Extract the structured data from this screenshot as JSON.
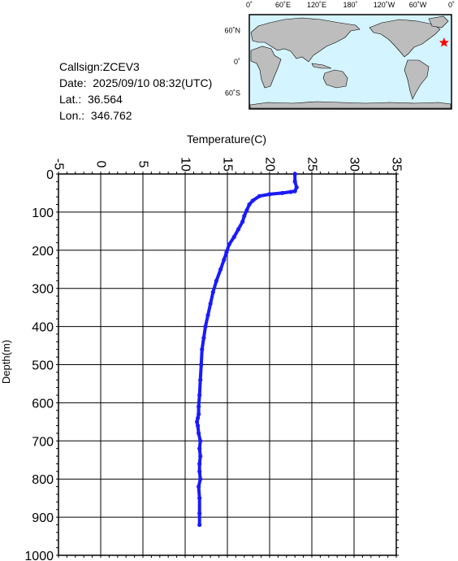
{
  "station": {
    "callsign": "Callsign:ZCEV3",
    "date": "Date:  2025/09/10 08:32(UTC)",
    "lat": "Lat.:  36.564",
    "lon": "Lon.:  346.762"
  },
  "map": {
    "lon_ticks": [
      "0˚",
      "60˚E",
      "120˚E",
      "180˚",
      "120˚W",
      "60˚W",
      "0˚"
    ],
    "lat_ticks": [
      "60˚N",
      "0˚",
      "60˚S"
    ],
    "ocean_color": "#d4f4ff",
    "land_color": "#bdbdbd",
    "marker_color": "#ff0000",
    "marker_lon": 346.762,
    "marker_lat": 36.564
  },
  "chart_data": {
    "type": "line",
    "xlabel": "Temperature(C)",
    "ylabel": "Depth(m)",
    "xlim": [
      -5,
      35
    ],
    "ylim": [
      1000,
      0
    ],
    "x_ticks": [
      "-5",
      "0",
      "5",
      "10",
      "15",
      "20",
      "25",
      "30",
      "35"
    ],
    "y_ticks": [
      "0",
      "100",
      "200",
      "300",
      "400",
      "500",
      "600",
      "700",
      "800",
      "900",
      "1000"
    ],
    "grid": true,
    "series_color": "#1a1aff",
    "series": [
      {
        "x": [
          23.0,
          23.0,
          23.2,
          23.0,
          22.5,
          21.5,
          20.0,
          18.8,
          18.0,
          17.6,
          17.3,
          17.0,
          16.8,
          16.3,
          15.8,
          15.2,
          14.9,
          14.6,
          14.2,
          13.7,
          13.3,
          13.0,
          12.7,
          12.4,
          12.2,
          12.0,
          11.9,
          11.8,
          11.7,
          11.6,
          11.6,
          11.5,
          11.4,
          11.5,
          11.6,
          11.8,
          11.7,
          11.8,
          11.7,
          11.7,
          11.8,
          11.6,
          11.7,
          11.7,
          11.7
        ],
        "y": [
          0,
          20,
          35,
          45,
          47,
          50,
          53,
          58,
          70,
          80,
          95,
          110,
          125,
          145,
          165,
          185,
          205,
          225,
          250,
          280,
          310,
          340,
          370,
          400,
          430,
          460,
          500,
          540,
          580,
          610,
          630,
          640,
          650,
          660,
          680,
          700,
          720,
          740,
          760,
          780,
          800,
          820,
          850,
          890,
          920
        ]
      }
    ]
  }
}
